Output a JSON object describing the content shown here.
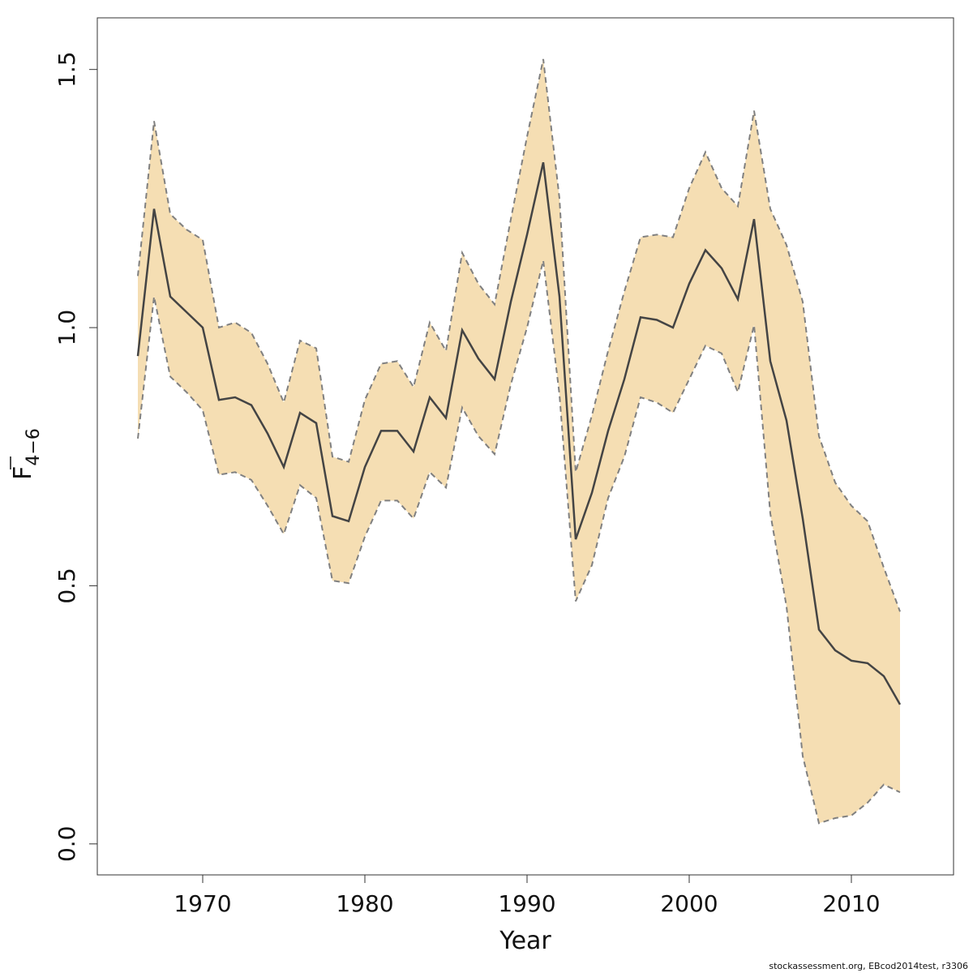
{
  "chart_data": {
    "type": "line",
    "title": "",
    "xlabel": "Year",
    "ylabel": {
      "main": "F",
      "subscript": "4−6",
      "overline": true
    },
    "xlim": [
      1963.5,
      2016.3
    ],
    "ylim": [
      -0.06,
      1.6
    ],
    "xticks": [
      1970,
      1980,
      1990,
      2000,
      2010
    ],
    "yticks": [
      0.0,
      0.5,
      1.0,
      1.5
    ],
    "ytick_labels": [
      "0.0",
      "0.5",
      "1.0",
      "1.5"
    ],
    "grid": false,
    "legend": "none",
    "colors": {
      "band": "#f5deb3",
      "line": "#444444",
      "bounds": "#808080"
    },
    "x": [
      1966,
      1967,
      1968,
      1969,
      1970,
      1971,
      1972,
      1973,
      1974,
      1975,
      1976,
      1977,
      1978,
      1979,
      1980,
      1981,
      1982,
      1983,
      1984,
      1985,
      1986,
      1987,
      1988,
      1989,
      1990,
      1991,
      1992,
      1993,
      1994,
      1995,
      1996,
      1997,
      1998,
      1999,
      2000,
      2001,
      2002,
      2003,
      2004,
      2005,
      2006,
      2007,
      2008,
      2009,
      2010,
      2011,
      2012,
      2013
    ],
    "series": [
      {
        "role": "estimate",
        "values": [
          0.945,
          1.23,
          1.06,
          1.03,
          1.0,
          0.86,
          0.865,
          0.85,
          0.795,
          0.73,
          0.835,
          0.815,
          0.635,
          0.625,
          0.73,
          0.8,
          0.8,
          0.76,
          0.865,
          0.825,
          0.995,
          0.94,
          0.9,
          1.05,
          1.18,
          1.32,
          1.06,
          0.59,
          0.68,
          0.8,
          0.9,
          1.02,
          1.015,
          1.0,
          1.085,
          1.15,
          1.115,
          1.055,
          1.21,
          0.935,
          0.82,
          0.63,
          0.415,
          0.375,
          0.355,
          0.35,
          0.325,
          0.27
        ]
      },
      {
        "role": "upper",
        "values": [
          1.1,
          1.4,
          1.22,
          1.19,
          1.17,
          1.0,
          1.01,
          0.99,
          0.93,
          0.855,
          0.975,
          0.96,
          0.75,
          0.74,
          0.86,
          0.93,
          0.935,
          0.885,
          1.01,
          0.955,
          1.145,
          1.085,
          1.045,
          1.21,
          1.37,
          1.52,
          1.25,
          0.72,
          0.83,
          0.955,
          1.07,
          1.175,
          1.18,
          1.175,
          1.27,
          1.34,
          1.27,
          1.235,
          1.42,
          1.23,
          1.16,
          1.05,
          0.79,
          0.7,
          0.655,
          0.625,
          0.535,
          0.45
        ]
      },
      {
        "role": "lower",
        "values": [
          0.785,
          1.06,
          0.905,
          0.875,
          0.84,
          0.715,
          0.72,
          0.705,
          0.655,
          0.6,
          0.695,
          0.67,
          0.51,
          0.505,
          0.595,
          0.665,
          0.665,
          0.63,
          0.72,
          0.69,
          0.845,
          0.79,
          0.755,
          0.89,
          1.0,
          1.13,
          0.87,
          0.47,
          0.54,
          0.67,
          0.75,
          0.865,
          0.855,
          0.835,
          0.9,
          0.965,
          0.95,
          0.875,
          1.005,
          0.64,
          0.46,
          0.17,
          0.04,
          0.05,
          0.055,
          0.08,
          0.115,
          0.1
        ]
      }
    ]
  },
  "footer": "stockassessment.org, EBcod2014test, r3306"
}
